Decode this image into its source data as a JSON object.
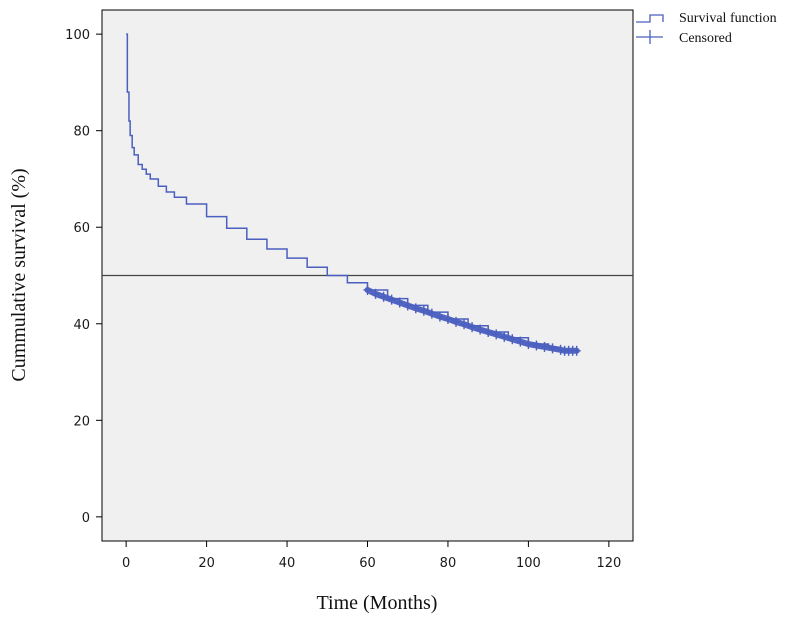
{
  "chart_data": {
    "type": "line",
    "title": "",
    "xlabel": "Time (Months)",
    "ylabel": "Cummulative survival (%)",
    "xlim": [
      -6,
      126
    ],
    "ylim": [
      -5,
      105
    ],
    "x_ticks": [
      0,
      20,
      40,
      60,
      80,
      100,
      120
    ],
    "y_ticks": [
      0,
      20,
      40,
      60,
      80,
      100
    ],
    "x_tick_labels": [
      "0",
      "20",
      "40",
      "60",
      "80",
      "100",
      "120"
    ],
    "y_tick_labels": [
      "0",
      "20",
      "40",
      "60",
      "80",
      "100"
    ],
    "reference_line_y": 50,
    "grid": false,
    "legend_position": "top-right",
    "series": [
      {
        "name": "Survival function",
        "style": "step",
        "color": "#4a5fbf",
        "x": [
          0,
          0.3,
          0.7,
          1,
          1.5,
          2,
          3,
          4,
          5,
          6,
          8,
          10,
          12,
          15,
          20,
          25,
          30,
          35,
          40,
          45,
          50,
          55,
          60,
          65,
          70,
          75,
          80,
          85,
          90,
          95,
          100,
          105,
          108,
          110,
          112
        ],
        "y": [
          100,
          88,
          82,
          79,
          76.5,
          75,
          73,
          72,
          71,
          70,
          68.5,
          67.3,
          66.2,
          64.8,
          62.2,
          59.8,
          57.5,
          55.5,
          53.6,
          51.7,
          50,
          48.5,
          47,
          45.2,
          43.8,
          42.4,
          41,
          39.6,
          38.3,
          37.1,
          35.8,
          35.1,
          34.6,
          34.4,
          34.4
        ]
      },
      {
        "name": "Censored",
        "style": "markers",
        "marker": "+",
        "color": "#4a5fbf",
        "x": [
          60,
          62,
          64,
          66,
          68,
          70,
          72,
          74,
          76,
          78,
          80,
          82,
          84,
          86,
          88,
          90,
          92,
          94,
          96,
          98,
          100,
          102,
          104,
          106,
          108,
          109,
          110,
          111,
          112
        ],
        "y": [
          47,
          46.2,
          45.6,
          45,
          44.4,
          43.8,
          43.2,
          42.7,
          42.1,
          41.5,
          41,
          40.4,
          39.9,
          39.3,
          38.8,
          38.3,
          37.8,
          37.3,
          36.8,
          36.3,
          35.8,
          35.5,
          35.2,
          34.9,
          34.6,
          34.4,
          34.4,
          34.4,
          34.4
        ]
      }
    ]
  }
}
